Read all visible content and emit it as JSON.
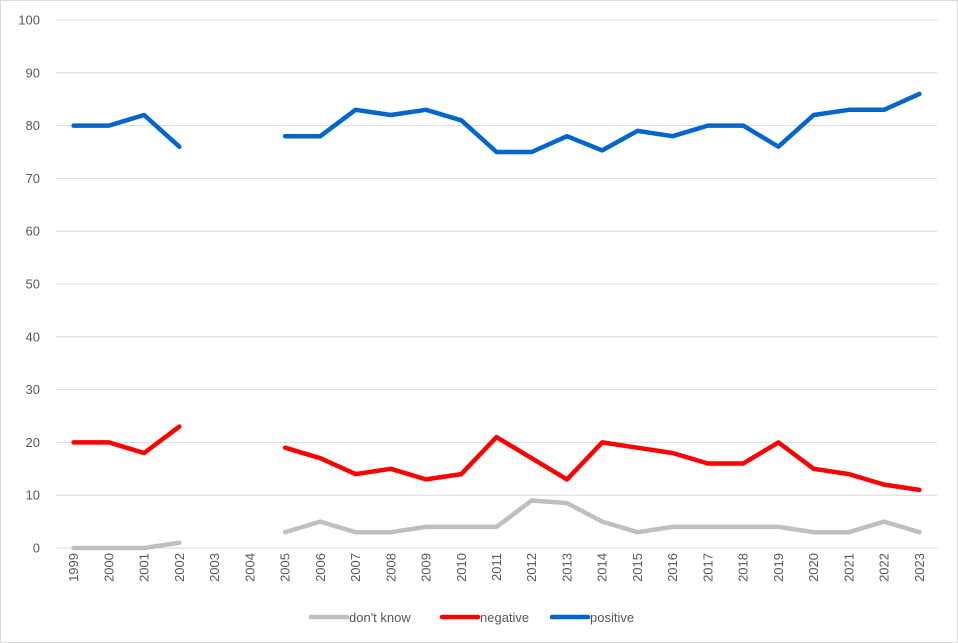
{
  "chart_data": {
    "type": "line",
    "title": "",
    "xlabel": "",
    "ylabel": "",
    "ylim": [
      0,
      100
    ],
    "yticks": [
      0,
      10,
      20,
      30,
      40,
      50,
      60,
      70,
      80,
      90,
      100
    ],
    "grid": true,
    "legend_position": "bottom",
    "categories": [
      "1999",
      "2000",
      "2001",
      "2002",
      "2003",
      "2004",
      "2005",
      "2006",
      "2007",
      "2008",
      "2009",
      "2010",
      "2011",
      "2012",
      "2013",
      "2014",
      "2015",
      "2016",
      "2017",
      "2018",
      "2019",
      "2020",
      "2021",
      "2022",
      "2023"
    ],
    "series": [
      {
        "name": "don't know",
        "color": "#bfbfbf",
        "values": [
          0,
          0,
          0,
          1,
          null,
          null,
          3,
          5,
          3,
          3,
          4,
          4,
          4,
          9,
          8.5,
          5,
          3,
          4,
          4,
          4,
          4,
          3,
          3,
          5,
          3
        ]
      },
      {
        "name": "negative",
        "color": "#ff0000",
        "values": [
          20,
          20,
          18,
          23,
          null,
          null,
          19,
          17,
          14,
          15,
          13,
          14,
          21,
          17,
          13,
          20,
          19,
          18,
          16,
          16,
          20,
          15,
          14,
          12,
          11
        ]
      },
      {
        "name": "positive",
        "color": "#0066cc",
        "values": [
          80,
          80,
          82,
          76,
          null,
          null,
          78,
          78,
          83,
          82,
          83,
          81,
          75,
          75,
          78,
          75.3,
          79,
          78,
          80,
          80,
          76,
          82,
          83,
          83,
          86
        ]
      }
    ]
  }
}
